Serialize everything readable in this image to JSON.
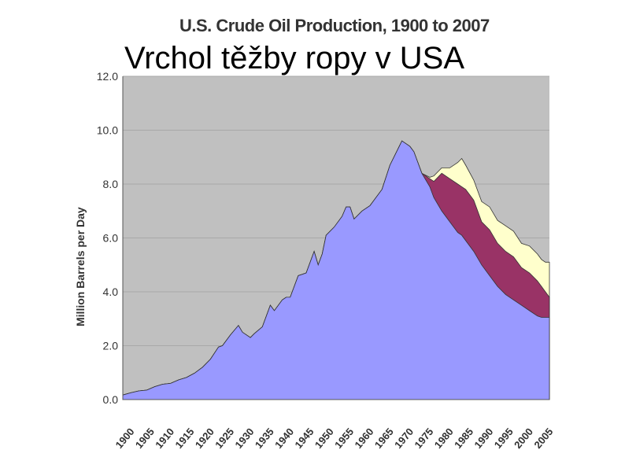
{
  "slide": {
    "title": "Vrchol těžby ropy v USA"
  },
  "chart_data": {
    "type": "area",
    "title": "U.S. Crude Oil Production, 1900 to 2007",
    "xlabel": "",
    "ylabel": "Million Barrels per Day",
    "ylim": [
      0,
      12
    ],
    "yticks": [
      "0.0",
      "2.0",
      "4.0",
      "6.0",
      "8.0",
      "10.0",
      "12.0"
    ],
    "xticks": [
      "1900",
      "1905",
      "1910",
      "1915",
      "1920",
      "1925",
      "1930",
      "1935",
      "1940",
      "1945",
      "1950",
      "1955",
      "1960",
      "1965",
      "1970",
      "1975",
      "1980",
      "1985",
      "1990",
      "1995",
      "2000",
      "2005"
    ],
    "xlim": [
      1900,
      2007
    ],
    "grid": true,
    "colors": {
      "plot_bg": "#c0c0c0",
      "series1": "#9999ff",
      "series2": "#993366",
      "series3": "#ffffcc"
    },
    "x": [
      1900,
      1902,
      1904,
      1906,
      1908,
      1910,
      1912,
      1914,
      1916,
      1918,
      1920,
      1922,
      1924,
      1925,
      1927,
      1929,
      1930,
      1932,
      1933,
      1935,
      1937,
      1938,
      1940,
      1941,
      1942,
      1944,
      1946,
      1948,
      1949,
      1950,
      1951,
      1953,
      1955,
      1956,
      1957,
      1958,
      1960,
      1962,
      1965,
      1967,
      1970,
      1971,
      1972,
      1973,
      1975,
      1977,
      1978,
      1980,
      1982,
      1984,
      1985,
      1986,
      1988,
      1990,
      1992,
      1994,
      1996,
      1998,
      2000,
      2002,
      2004,
      2005,
      2006,
      2007
    ],
    "series": [
      {
        "values": [
          0.17,
          0.25,
          0.32,
          0.35,
          0.48,
          0.57,
          0.6,
          0.73,
          0.82,
          0.98,
          1.2,
          1.5,
          1.95,
          2.0,
          2.4,
          2.75,
          2.5,
          2.3,
          2.45,
          2.7,
          3.5,
          3.3,
          3.7,
          3.8,
          3.8,
          4.6,
          4.7,
          5.5,
          5.0,
          5.4,
          6.1,
          6.4,
          6.8,
          7.15,
          7.15,
          6.7,
          7.0,
          7.2,
          7.8,
          8.7,
          9.6,
          9.5,
          9.4,
          9.2,
          8.4,
          8.25,
          8.3,
          8.6,
          8.6,
          8.8,
          8.95,
          8.7,
          8.15,
          7.35,
          7.15,
          6.65,
          6.45,
          6.25,
          5.8,
          5.7,
          5.4,
          5.2,
          5.1,
          5.1
        ]
      },
      {
        "values": [
          0.17,
          0.25,
          0.32,
          0.35,
          0.48,
          0.57,
          0.6,
          0.73,
          0.82,
          0.98,
          1.2,
          1.5,
          1.95,
          2.0,
          2.4,
          2.75,
          2.5,
          2.3,
          2.45,
          2.7,
          3.5,
          3.3,
          3.7,
          3.8,
          3.8,
          4.6,
          4.7,
          5.5,
          5.0,
          5.4,
          6.1,
          6.4,
          6.8,
          7.15,
          7.15,
          6.7,
          7.0,
          7.2,
          7.8,
          8.7,
          9.6,
          9.5,
          9.4,
          9.2,
          8.4,
          8.2,
          8.1,
          8.4,
          8.2,
          8.0,
          7.9,
          7.8,
          7.4,
          6.6,
          6.3,
          5.8,
          5.5,
          5.3,
          4.9,
          4.7,
          4.4,
          4.2,
          4.0,
          3.8
        ]
      },
      {
        "values": [
          0.17,
          0.25,
          0.32,
          0.35,
          0.48,
          0.57,
          0.6,
          0.73,
          0.82,
          0.98,
          1.2,
          1.5,
          1.95,
          2.0,
          2.4,
          2.75,
          2.5,
          2.3,
          2.45,
          2.7,
          3.5,
          3.3,
          3.7,
          3.8,
          3.8,
          4.6,
          4.7,
          5.5,
          5.0,
          5.4,
          6.1,
          6.4,
          6.8,
          7.15,
          7.15,
          6.7,
          7.0,
          7.2,
          7.8,
          8.7,
          9.6,
          9.5,
          9.4,
          9.2,
          8.4,
          7.9,
          7.5,
          7.0,
          6.6,
          6.2,
          6.1,
          5.9,
          5.5,
          5.0,
          4.6,
          4.2,
          3.9,
          3.7,
          3.5,
          3.3,
          3.1,
          3.05,
          3.05,
          3.05
        ]
      }
    ]
  }
}
